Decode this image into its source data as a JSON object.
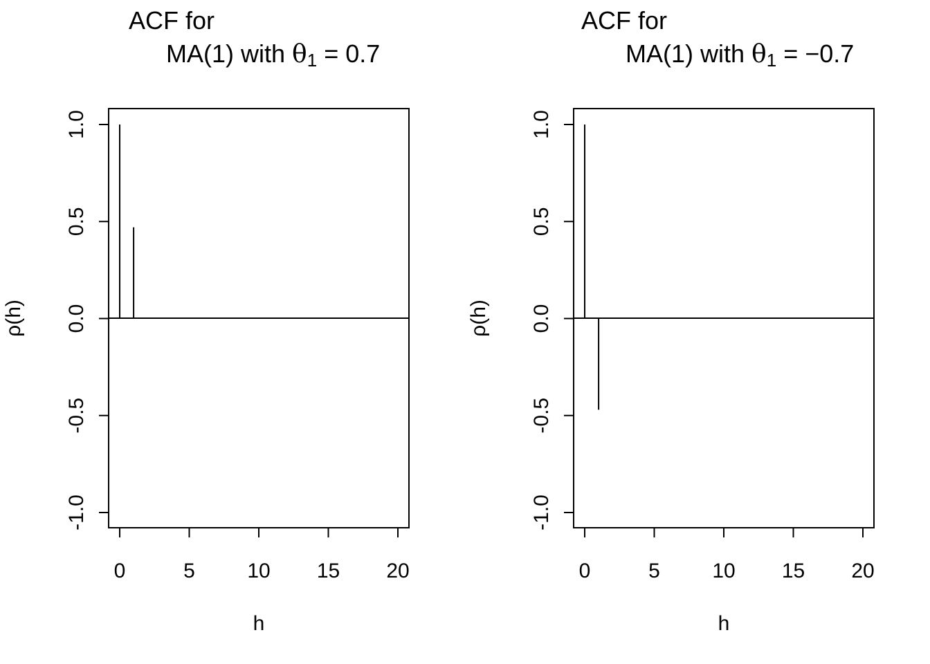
{
  "chart_data": [
    {
      "type": "bar",
      "title_line1": "ACF for",
      "title_line2_prefix": "MA(1) with ",
      "title_symbol": "θ",
      "title_subscript": "1",
      "title_value": " = 0.7",
      "xlabel": "h",
      "ylabel": "ρ(h)",
      "xlim": [
        0,
        20
      ],
      "ylim": [
        -1.0,
        1.0
      ],
      "xticks": [
        "0",
        "5",
        "10",
        "15",
        "20"
      ],
      "yticks": [
        "-1.0",
        "-0.5",
        "0.0",
        "0.5",
        "1.0"
      ],
      "x": [
        0,
        1
      ],
      "values": [
        1.0,
        0.47
      ]
    },
    {
      "type": "bar",
      "title_line1": "ACF for",
      "title_line2_prefix": "MA(1) with ",
      "title_symbol": "θ",
      "title_subscript": "1",
      "title_value": " = −0.7",
      "xlabel": "h",
      "ylabel": "ρ(h)",
      "xlim": [
        0,
        20
      ],
      "ylim": [
        -1.0,
        1.0
      ],
      "xticks": [
        "0",
        "5",
        "10",
        "15",
        "20"
      ],
      "yticks": [
        "-1.0",
        "-0.5",
        "0.0",
        "0.5",
        "1.0"
      ],
      "x": [
        0,
        1
      ],
      "values": [
        1.0,
        -0.47
      ]
    }
  ]
}
